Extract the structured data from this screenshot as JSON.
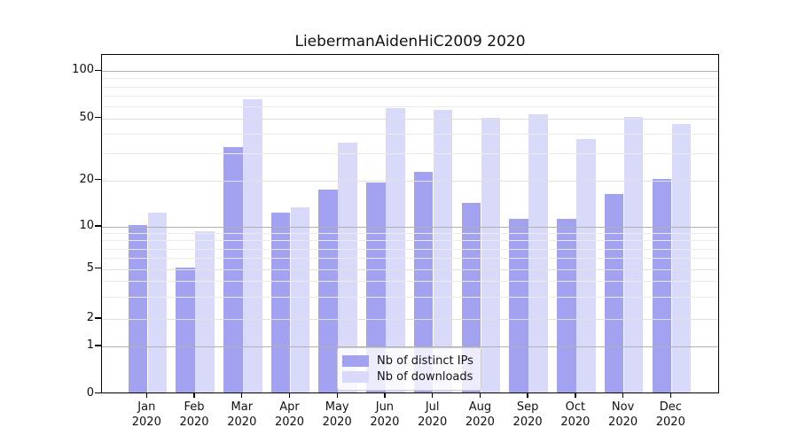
{
  "title": "LiebermanAidenHiC2009 2020",
  "chart_data": {
    "type": "bar",
    "title": "LiebermanAidenHiC2009 2020",
    "categories": [
      "Jan 2020",
      "Feb 2020",
      "Mar 2020",
      "Apr 2020",
      "May 2020",
      "Jun 2020",
      "Jul 2020",
      "Aug 2020",
      "Sep 2020",
      "Oct 2020",
      "Nov 2020",
      "Dec 2020"
    ],
    "x_tick_line1": [
      "Jan",
      "Feb",
      "Mar",
      "Apr",
      "May",
      "Jun",
      "Jul",
      "Aug",
      "Sep",
      "Oct",
      "Nov",
      "Dec"
    ],
    "x_tick_line2": "2020",
    "series": [
      {
        "name": "Nb of distinct IPs",
        "color": "#a2a2f0",
        "values": [
          10,
          5,
          32,
          12,
          17,
          19,
          22,
          14,
          11,
          11,
          16,
          20
        ]
      },
      {
        "name": "Nb of downloads",
        "color": "#d9d9f9",
        "values": [
          12,
          9,
          65,
          13,
          34,
          57,
          55,
          49,
          52,
          36,
          50,
          45
        ]
      }
    ],
    "yscale": "symlog",
    "ylabel": "",
    "xlabel": "",
    "y_ticks": [
      {
        "label": "100",
        "value": 100
      },
      {
        "label": "50",
        "value": 50
      },
      {
        "label": "20",
        "value": 20
      },
      {
        "label": "10",
        "value": 10
      },
      {
        "label": "5",
        "value": 5
      },
      {
        "label": "2",
        "value": 2
      },
      {
        "label": "1",
        "value": 1
      },
      {
        "label": "0",
        "value": 0
      }
    ],
    "major_gridline_values": [
      1,
      10,
      100
    ],
    "mid_gridline_values": [
      2,
      5,
      20,
      50
    ],
    "minor_gridline_values": [
      3,
      4,
      6,
      7,
      8,
      9,
      30,
      40,
      60,
      70,
      80,
      90
    ],
    "grid": true,
    "legend_position": "lower center"
  },
  "legend": {
    "entries": [
      {
        "label": "Nb of distinct IPs",
        "color": "#a2a2f0"
      },
      {
        "label": "Nb of downloads",
        "color": "#d9d9f9"
      }
    ]
  },
  "colors": {
    "series_dark": "#a2a2f0",
    "series_light": "#d9d9f9",
    "grid_major": "#b0b0b0",
    "grid_minor": "#ebebeb",
    "axis": "#000000",
    "background": "#ffffff"
  }
}
